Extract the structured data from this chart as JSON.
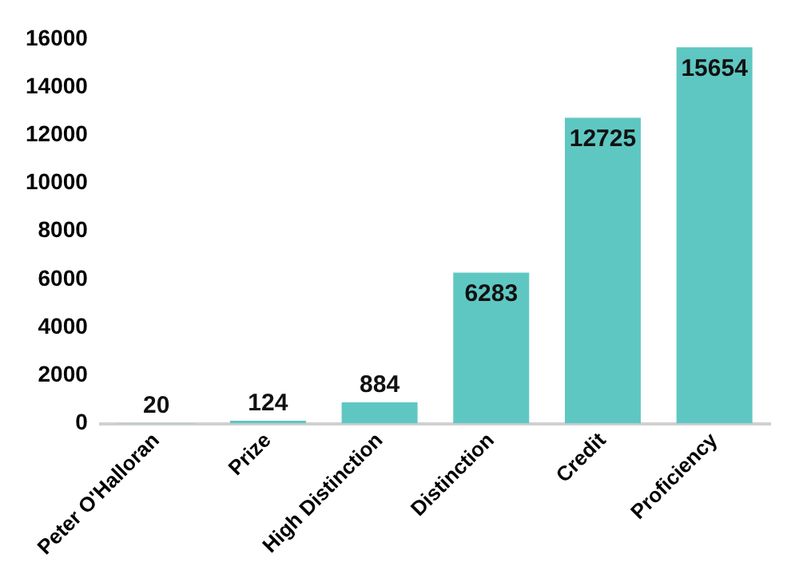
{
  "chart_data": {
    "type": "bar",
    "categories": [
      "Peter O'Halloran",
      "Prize",
      "High Distinction",
      "Distinction",
      "Credit",
      "Proficiency"
    ],
    "values": [
      20,
      124,
      884,
      6283,
      12725,
      15654
    ],
    "color": "#5fc7c2",
    "ylim": [
      0,
      16000
    ],
    "yticks": [
      0,
      2000,
      4000,
      6000,
      8000,
      10000,
      12000,
      14000,
      16000
    ],
    "grid": false,
    "data_labels": true,
    "legend": false
  }
}
